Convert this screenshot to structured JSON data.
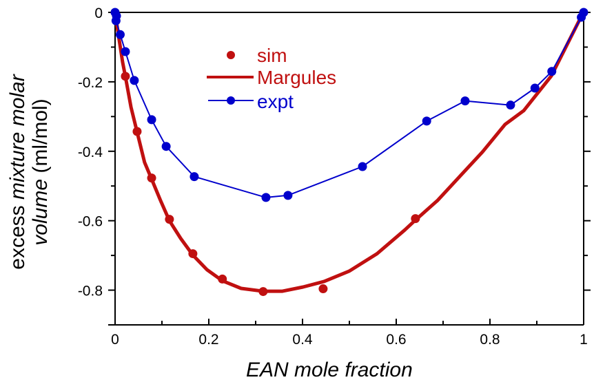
{
  "chart_data": {
    "type": "line",
    "xlabel": "EAN mole fraction",
    "ylabel_parts": [
      {
        "text": "excess ",
        "italic": false
      },
      {
        "text": "mixture molar",
        "italic": true
      }
    ],
    "ylabel_line2_parts": [
      {
        "text": "volume",
        "italic": true
      },
      {
        "text": " (ml/mol)",
        "italic": false
      }
    ],
    "xlim": [
      0,
      1
    ],
    "ylim": [
      -0.9,
      0
    ],
    "x_ticks": [
      {
        "value": 0,
        "label": "0"
      },
      {
        "value": 0.2,
        "label": "0.2"
      },
      {
        "value": 0.4,
        "label": "0.4"
      },
      {
        "value": 0.6,
        "label": "0.6"
      },
      {
        "value": 0.8,
        "label": "0.8"
      },
      {
        "value": 1,
        "label": "1"
      }
    ],
    "x_minor_ticks": [
      0.1,
      0.3,
      0.5,
      0.7,
      0.9
    ],
    "y_ticks": [
      {
        "value": 0,
        "label": "0"
      },
      {
        "value": -0.2,
        "label": "-0.2"
      },
      {
        "value": -0.4,
        "label": "-0.4"
      },
      {
        "value": -0.6,
        "label": "-0.6"
      },
      {
        "value": -0.8,
        "label": "-0.8"
      }
    ],
    "y_minor_ticks": [
      -0.1,
      -0.3,
      -0.5,
      -0.7,
      -0.9
    ],
    "legend_position": "top-left",
    "series": [
      {
        "name": "sim",
        "style": "markers",
        "color": "#c01010",
        "x": [
          0.022,
          0.047,
          0.078,
          0.116,
          0.166,
          0.229,
          0.316,
          0.444,
          0.641
        ],
        "y": [
          -0.184,
          -0.343,
          -0.477,
          -0.596,
          -0.695,
          -0.768,
          -0.804,
          -0.796,
          -0.594
        ]
      },
      {
        "name": "Margules",
        "style": "line",
        "color": "#c01010",
        "x": [
          0,
          0.007,
          0.016,
          0.022,
          0.034,
          0.047,
          0.063,
          0.078,
          0.097,
          0.116,
          0.14,
          0.166,
          0.196,
          0.229,
          0.269,
          0.316,
          0.357,
          0.401,
          0.446,
          0.5,
          0.559,
          0.618,
          0.641,
          0.688,
          0.74,
          0.784,
          0.832,
          0.872,
          0.931,
          0.994,
          1
        ],
        "y": [
          0,
          -0.064,
          -0.143,
          -0.185,
          -0.273,
          -0.345,
          -0.432,
          -0.48,
          -0.542,
          -0.6,
          -0.651,
          -0.699,
          -0.741,
          -0.773,
          -0.795,
          -0.803,
          -0.803,
          -0.791,
          -0.775,
          -0.745,
          -0.695,
          -0.627,
          -0.598,
          -0.542,
          -0.466,
          -0.402,
          -0.323,
          -0.283,
          -0.183,
          -0.014,
          0
        ]
      },
      {
        "name": "expt",
        "style": "line+markers",
        "color": "#0000cc",
        "x": [
          0,
          0.003,
          0.002,
          0.011,
          0.022,
          0.041,
          0.078,
          0.109,
          0.169,
          0.322,
          0.369,
          0.528,
          0.665,
          0.747,
          0.844,
          0.896,
          0.932,
          0.995,
          1
        ],
        "y": [
          0,
          -0.01,
          -0.024,
          -0.064,
          -0.113,
          -0.196,
          -0.309,
          -0.386,
          -0.473,
          -0.533,
          -0.527,
          -0.444,
          -0.313,
          -0.255,
          -0.267,
          -0.218,
          -0.17,
          -0.014,
          0
        ]
      }
    ]
  }
}
